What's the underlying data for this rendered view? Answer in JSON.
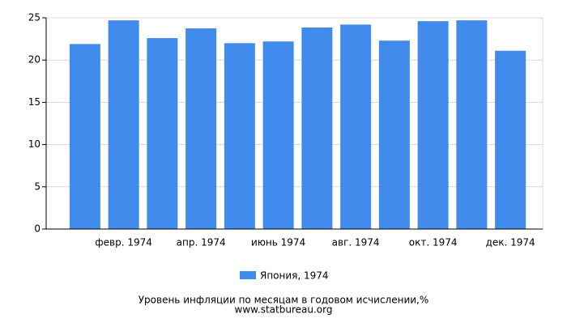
{
  "chart_data": {
    "type": "bar",
    "title": "Уровень инфляции по месяцам в годовом исчислении,%",
    "source": "www.statbureau.org",
    "categories": [
      null,
      "февр. 1974",
      null,
      "апр. 1974",
      null,
      "июнь 1974",
      null,
      "авг. 1974",
      null,
      "окт. 1974",
      null,
      "дек. 1974"
    ],
    "series": [
      {
        "name": "Япония, 1974",
        "color": "#418bed",
        "values": [
          21.9,
          24.7,
          22.6,
          23.75,
          22.0,
          22.2,
          23.85,
          24.2,
          22.3,
          24.6,
          24.7,
          21.1
        ]
      }
    ],
    "ylim": [
      0,
      25
    ],
    "yticks": [
      0,
      5,
      10,
      15,
      20,
      25
    ],
    "grid": true
  }
}
